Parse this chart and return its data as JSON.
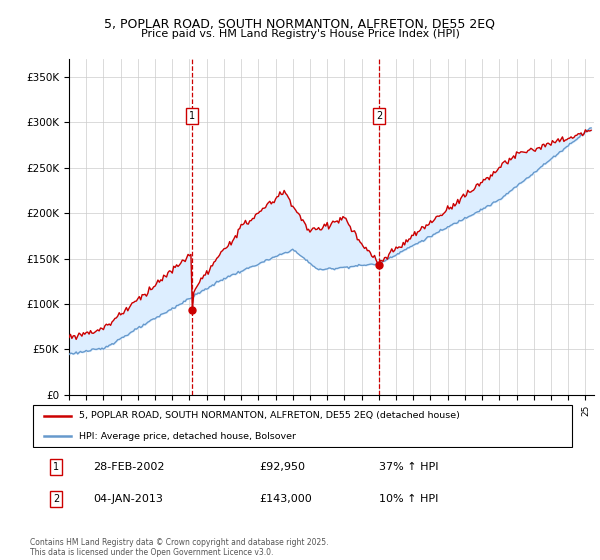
{
  "title1": "5, POPLAR ROAD, SOUTH NORMANTON, ALFRETON, DE55 2EQ",
  "title2": "Price paid vs. HM Land Registry's House Price Index (HPI)",
  "ylabel_ticks": [
    "£0",
    "£50K",
    "£100K",
    "£150K",
    "£200K",
    "£250K",
    "£300K",
    "£350K"
  ],
  "ylim": [
    0,
    370000
  ],
  "ytick_vals": [
    0,
    50000,
    100000,
    150000,
    200000,
    250000,
    300000,
    350000
  ],
  "sale1_date": "28-FEB-2002",
  "sale1_price": 92950,
  "sale1_pct": "37% ↑ HPI",
  "sale2_date": "04-JAN-2013",
  "sale2_price": 143000,
  "sale2_pct": "10% ↑ HPI",
  "legend_line1": "5, POPLAR ROAD, SOUTH NORMANTON, ALFRETON, DE55 2EQ (detached house)",
  "legend_line2": "HPI: Average price, detached house, Bolsover",
  "footer": "Contains HM Land Registry data © Crown copyright and database right 2025.\nThis data is licensed under the Open Government Licence v3.0.",
  "red_color": "#cc0000",
  "blue_color": "#6699cc",
  "fill_color": "#ddeeff",
  "vline_color": "#cc0000",
  "background_color": "#ffffff",
  "grid_color": "#cccccc",
  "sale1_x_year": 2002.16,
  "sale2_x_year": 2013.01,
  "xlim_start": 1995,
  "xlim_end": 2025.5
}
